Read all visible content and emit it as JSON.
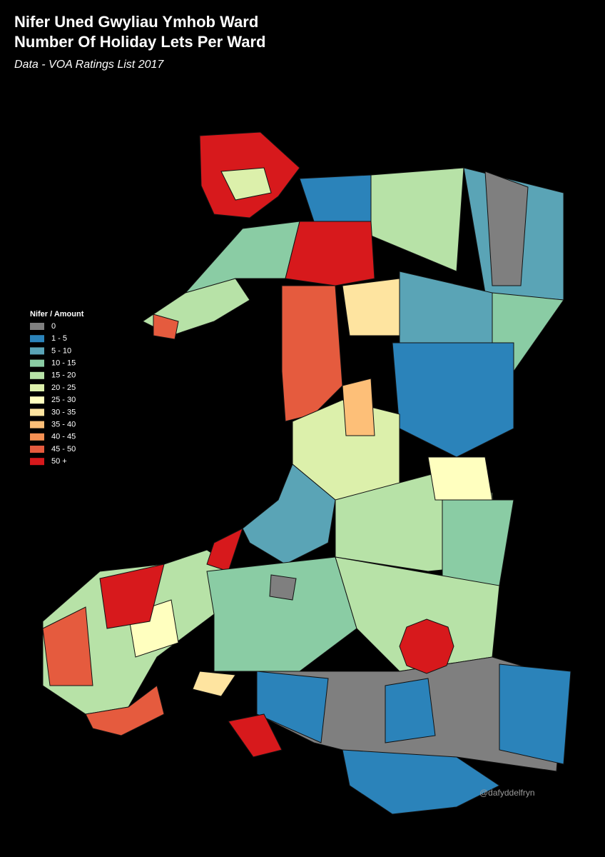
{
  "header": {
    "title_lines": [
      "Nifer Uned Gwyliau Ymhob Ward",
      "Number Of Holiday Lets Per Ward"
    ],
    "subtitle": "Data - VOA Ratings List 2017"
  },
  "legend": {
    "title": "Nifer / Amount",
    "items": [
      {
        "label": "0",
        "color": "#7f7f7f"
      },
      {
        "label": "1 - 5",
        "color": "#2b83ba"
      },
      {
        "label": "5 - 10",
        "color": "#5aa4b6"
      },
      {
        "label": "10 - 15",
        "color": "#8acca4"
      },
      {
        "label": "15 - 20",
        "color": "#b7e2a7"
      },
      {
        "label": "20 - 25",
        "color": "#dcf0ab"
      },
      {
        "label": "25 - 30",
        "color": "#ffffbf"
      },
      {
        "label": "30 - 35",
        "color": "#fee4a0"
      },
      {
        "label": "35 - 40",
        "color": "#fdbf78"
      },
      {
        "label": "40 - 45",
        "color": "#f59053"
      },
      {
        "label": "45 - 50",
        "color": "#e55b3e"
      },
      {
        "label": "50 +",
        "color": "#d7191c"
      }
    ]
  },
  "credit": "@dafyddelfryn"
}
